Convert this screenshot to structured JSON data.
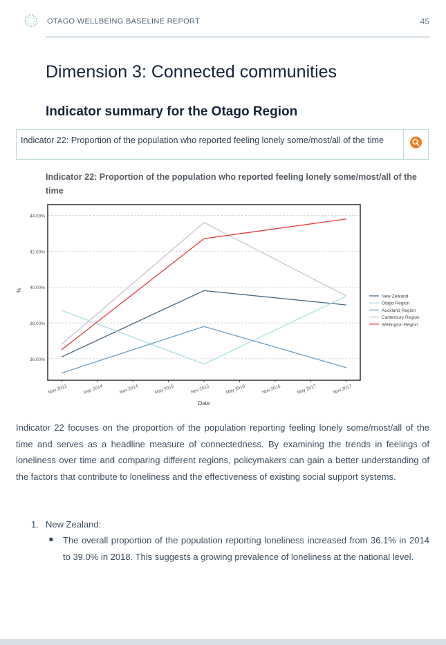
{
  "header": {
    "title": "OTAGO WELLBEING BASELINE REPORT",
    "page_number": "45",
    "logo_icon": "wreath-logo-icon"
  },
  "dimension_title": "Dimension 3: Connected communities",
  "section_title": "Indicator summary for the Otago Region",
  "search": {
    "text": "Indicator 22: Proportion of the population who reported feeling lonely some/most/all of the time",
    "icon": "search-icon",
    "accent": "#f07c1f"
  },
  "chart_heading": "Indicator 22: Proportion of the population who reported feeling lonely some/most/all of the time",
  "chart_data": {
    "type": "line",
    "xlabel": "Date",
    "ylabel": "%",
    "x_ticks": [
      "Nov 2013",
      "May 2014",
      "Nov 2014",
      "May 2015",
      "Nov 2015",
      "May 2016",
      "Nov 2016",
      "May 2017",
      "Nov 2017"
    ],
    "y_ticks": [
      "36.00%",
      "38.00%",
      "40.00%",
      "42.00%",
      "44.00%"
    ],
    "x": [
      "Nov 2013",
      "Nov 2015",
      "Nov 2017"
    ],
    "ylim": [
      34.8,
      44.6
    ],
    "grid": "horizontal dashed",
    "legend_position": "right",
    "series": [
      {
        "name": "New Zealand",
        "color": "#4a6885",
        "values": [
          36.1,
          39.8,
          39.0
        ]
      },
      {
        "name": "Otago Region",
        "color": "#a9dde3",
        "values": [
          38.7,
          35.7,
          39.5
        ]
      },
      {
        "name": "Auckland Region",
        "color": "#6a9dc2",
        "values": [
          35.2,
          37.8,
          35.5
        ]
      },
      {
        "name": "Canterbury Region",
        "color": "#c6c6cb",
        "values": [
          36.8,
          43.6,
          39.5
        ]
      },
      {
        "name": "Wellington Region",
        "color": "#e23b3b",
        "values": [
          36.5,
          42.7,
          43.8
        ]
      }
    ]
  },
  "body_paragraph": "Indicator 22 focuses on the proportion of the population reporting feeling lonely some/most/all of the time and serves as a headline measure of connectedness. By examining the trends in feelings of loneliness over time and comparing different regions, policymakers can gain a better understanding of the factors that contribute to loneliness and the effectiveness of existing social support systems.",
  "list": {
    "number": "1.",
    "heading": "New Zealand:",
    "bullet": "The overall proportion of the population reporting loneliness increased from 36.1% in 2014 to 39.0% in 2018. This suggests a growing prevalence of loneliness at the national level."
  }
}
